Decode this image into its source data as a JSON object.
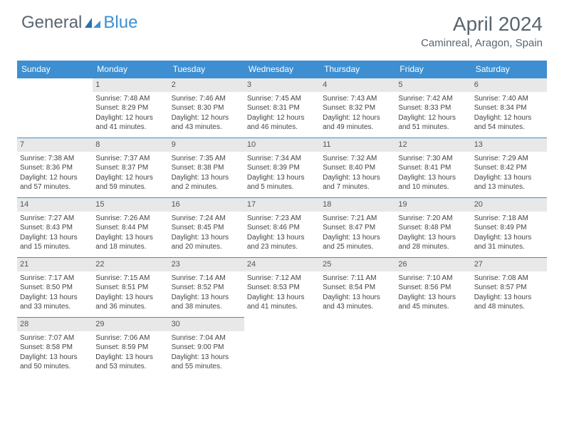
{
  "brand": {
    "part1": "General",
    "part2": "Blue"
  },
  "title": "April 2024",
  "location": "Caminreal, Aragon, Spain",
  "colors": {
    "header_bg": "#3d8fd1",
    "header_text": "#ffffff",
    "daynum_bg": "#e8e8e8",
    "border": "#3d8fd1",
    "title_color": "#5a6570"
  },
  "weekdays": [
    "Sunday",
    "Monday",
    "Tuesday",
    "Wednesday",
    "Thursday",
    "Friday",
    "Saturday"
  ],
  "weeks": [
    [
      {
        "n": "",
        "sr": "",
        "ss": "",
        "dl": ""
      },
      {
        "n": "1",
        "sr": "Sunrise: 7:48 AM",
        "ss": "Sunset: 8:29 PM",
        "dl": "Daylight: 12 hours and 41 minutes."
      },
      {
        "n": "2",
        "sr": "Sunrise: 7:46 AM",
        "ss": "Sunset: 8:30 PM",
        "dl": "Daylight: 12 hours and 43 minutes."
      },
      {
        "n": "3",
        "sr": "Sunrise: 7:45 AM",
        "ss": "Sunset: 8:31 PM",
        "dl": "Daylight: 12 hours and 46 minutes."
      },
      {
        "n": "4",
        "sr": "Sunrise: 7:43 AM",
        "ss": "Sunset: 8:32 PM",
        "dl": "Daylight: 12 hours and 49 minutes."
      },
      {
        "n": "5",
        "sr": "Sunrise: 7:42 AM",
        "ss": "Sunset: 8:33 PM",
        "dl": "Daylight: 12 hours and 51 minutes."
      },
      {
        "n": "6",
        "sr": "Sunrise: 7:40 AM",
        "ss": "Sunset: 8:34 PM",
        "dl": "Daylight: 12 hours and 54 minutes."
      }
    ],
    [
      {
        "n": "7",
        "sr": "Sunrise: 7:38 AM",
        "ss": "Sunset: 8:36 PM",
        "dl": "Daylight: 12 hours and 57 minutes."
      },
      {
        "n": "8",
        "sr": "Sunrise: 7:37 AM",
        "ss": "Sunset: 8:37 PM",
        "dl": "Daylight: 12 hours and 59 minutes."
      },
      {
        "n": "9",
        "sr": "Sunrise: 7:35 AM",
        "ss": "Sunset: 8:38 PM",
        "dl": "Daylight: 13 hours and 2 minutes."
      },
      {
        "n": "10",
        "sr": "Sunrise: 7:34 AM",
        "ss": "Sunset: 8:39 PM",
        "dl": "Daylight: 13 hours and 5 minutes."
      },
      {
        "n": "11",
        "sr": "Sunrise: 7:32 AM",
        "ss": "Sunset: 8:40 PM",
        "dl": "Daylight: 13 hours and 7 minutes."
      },
      {
        "n": "12",
        "sr": "Sunrise: 7:30 AM",
        "ss": "Sunset: 8:41 PM",
        "dl": "Daylight: 13 hours and 10 minutes."
      },
      {
        "n": "13",
        "sr": "Sunrise: 7:29 AM",
        "ss": "Sunset: 8:42 PM",
        "dl": "Daylight: 13 hours and 13 minutes."
      }
    ],
    [
      {
        "n": "14",
        "sr": "Sunrise: 7:27 AM",
        "ss": "Sunset: 8:43 PM",
        "dl": "Daylight: 13 hours and 15 minutes."
      },
      {
        "n": "15",
        "sr": "Sunrise: 7:26 AM",
        "ss": "Sunset: 8:44 PM",
        "dl": "Daylight: 13 hours and 18 minutes."
      },
      {
        "n": "16",
        "sr": "Sunrise: 7:24 AM",
        "ss": "Sunset: 8:45 PM",
        "dl": "Daylight: 13 hours and 20 minutes."
      },
      {
        "n": "17",
        "sr": "Sunrise: 7:23 AM",
        "ss": "Sunset: 8:46 PM",
        "dl": "Daylight: 13 hours and 23 minutes."
      },
      {
        "n": "18",
        "sr": "Sunrise: 7:21 AM",
        "ss": "Sunset: 8:47 PM",
        "dl": "Daylight: 13 hours and 25 minutes."
      },
      {
        "n": "19",
        "sr": "Sunrise: 7:20 AM",
        "ss": "Sunset: 8:48 PM",
        "dl": "Daylight: 13 hours and 28 minutes."
      },
      {
        "n": "20",
        "sr": "Sunrise: 7:18 AM",
        "ss": "Sunset: 8:49 PM",
        "dl": "Daylight: 13 hours and 31 minutes."
      }
    ],
    [
      {
        "n": "21",
        "sr": "Sunrise: 7:17 AM",
        "ss": "Sunset: 8:50 PM",
        "dl": "Daylight: 13 hours and 33 minutes."
      },
      {
        "n": "22",
        "sr": "Sunrise: 7:15 AM",
        "ss": "Sunset: 8:51 PM",
        "dl": "Daylight: 13 hours and 36 minutes."
      },
      {
        "n": "23",
        "sr": "Sunrise: 7:14 AM",
        "ss": "Sunset: 8:52 PM",
        "dl": "Daylight: 13 hours and 38 minutes."
      },
      {
        "n": "24",
        "sr": "Sunrise: 7:12 AM",
        "ss": "Sunset: 8:53 PM",
        "dl": "Daylight: 13 hours and 41 minutes."
      },
      {
        "n": "25",
        "sr": "Sunrise: 7:11 AM",
        "ss": "Sunset: 8:54 PM",
        "dl": "Daylight: 13 hours and 43 minutes."
      },
      {
        "n": "26",
        "sr": "Sunrise: 7:10 AM",
        "ss": "Sunset: 8:56 PM",
        "dl": "Daylight: 13 hours and 45 minutes."
      },
      {
        "n": "27",
        "sr": "Sunrise: 7:08 AM",
        "ss": "Sunset: 8:57 PM",
        "dl": "Daylight: 13 hours and 48 minutes."
      }
    ],
    [
      {
        "n": "28",
        "sr": "Sunrise: 7:07 AM",
        "ss": "Sunset: 8:58 PM",
        "dl": "Daylight: 13 hours and 50 minutes."
      },
      {
        "n": "29",
        "sr": "Sunrise: 7:06 AM",
        "ss": "Sunset: 8:59 PM",
        "dl": "Daylight: 13 hours and 53 minutes."
      },
      {
        "n": "30",
        "sr": "Sunrise: 7:04 AM",
        "ss": "Sunset: 9:00 PM",
        "dl": "Daylight: 13 hours and 55 minutes."
      },
      {
        "n": "",
        "sr": "",
        "ss": "",
        "dl": ""
      },
      {
        "n": "",
        "sr": "",
        "ss": "",
        "dl": ""
      },
      {
        "n": "",
        "sr": "",
        "ss": "",
        "dl": ""
      },
      {
        "n": "",
        "sr": "",
        "ss": "",
        "dl": ""
      }
    ]
  ]
}
